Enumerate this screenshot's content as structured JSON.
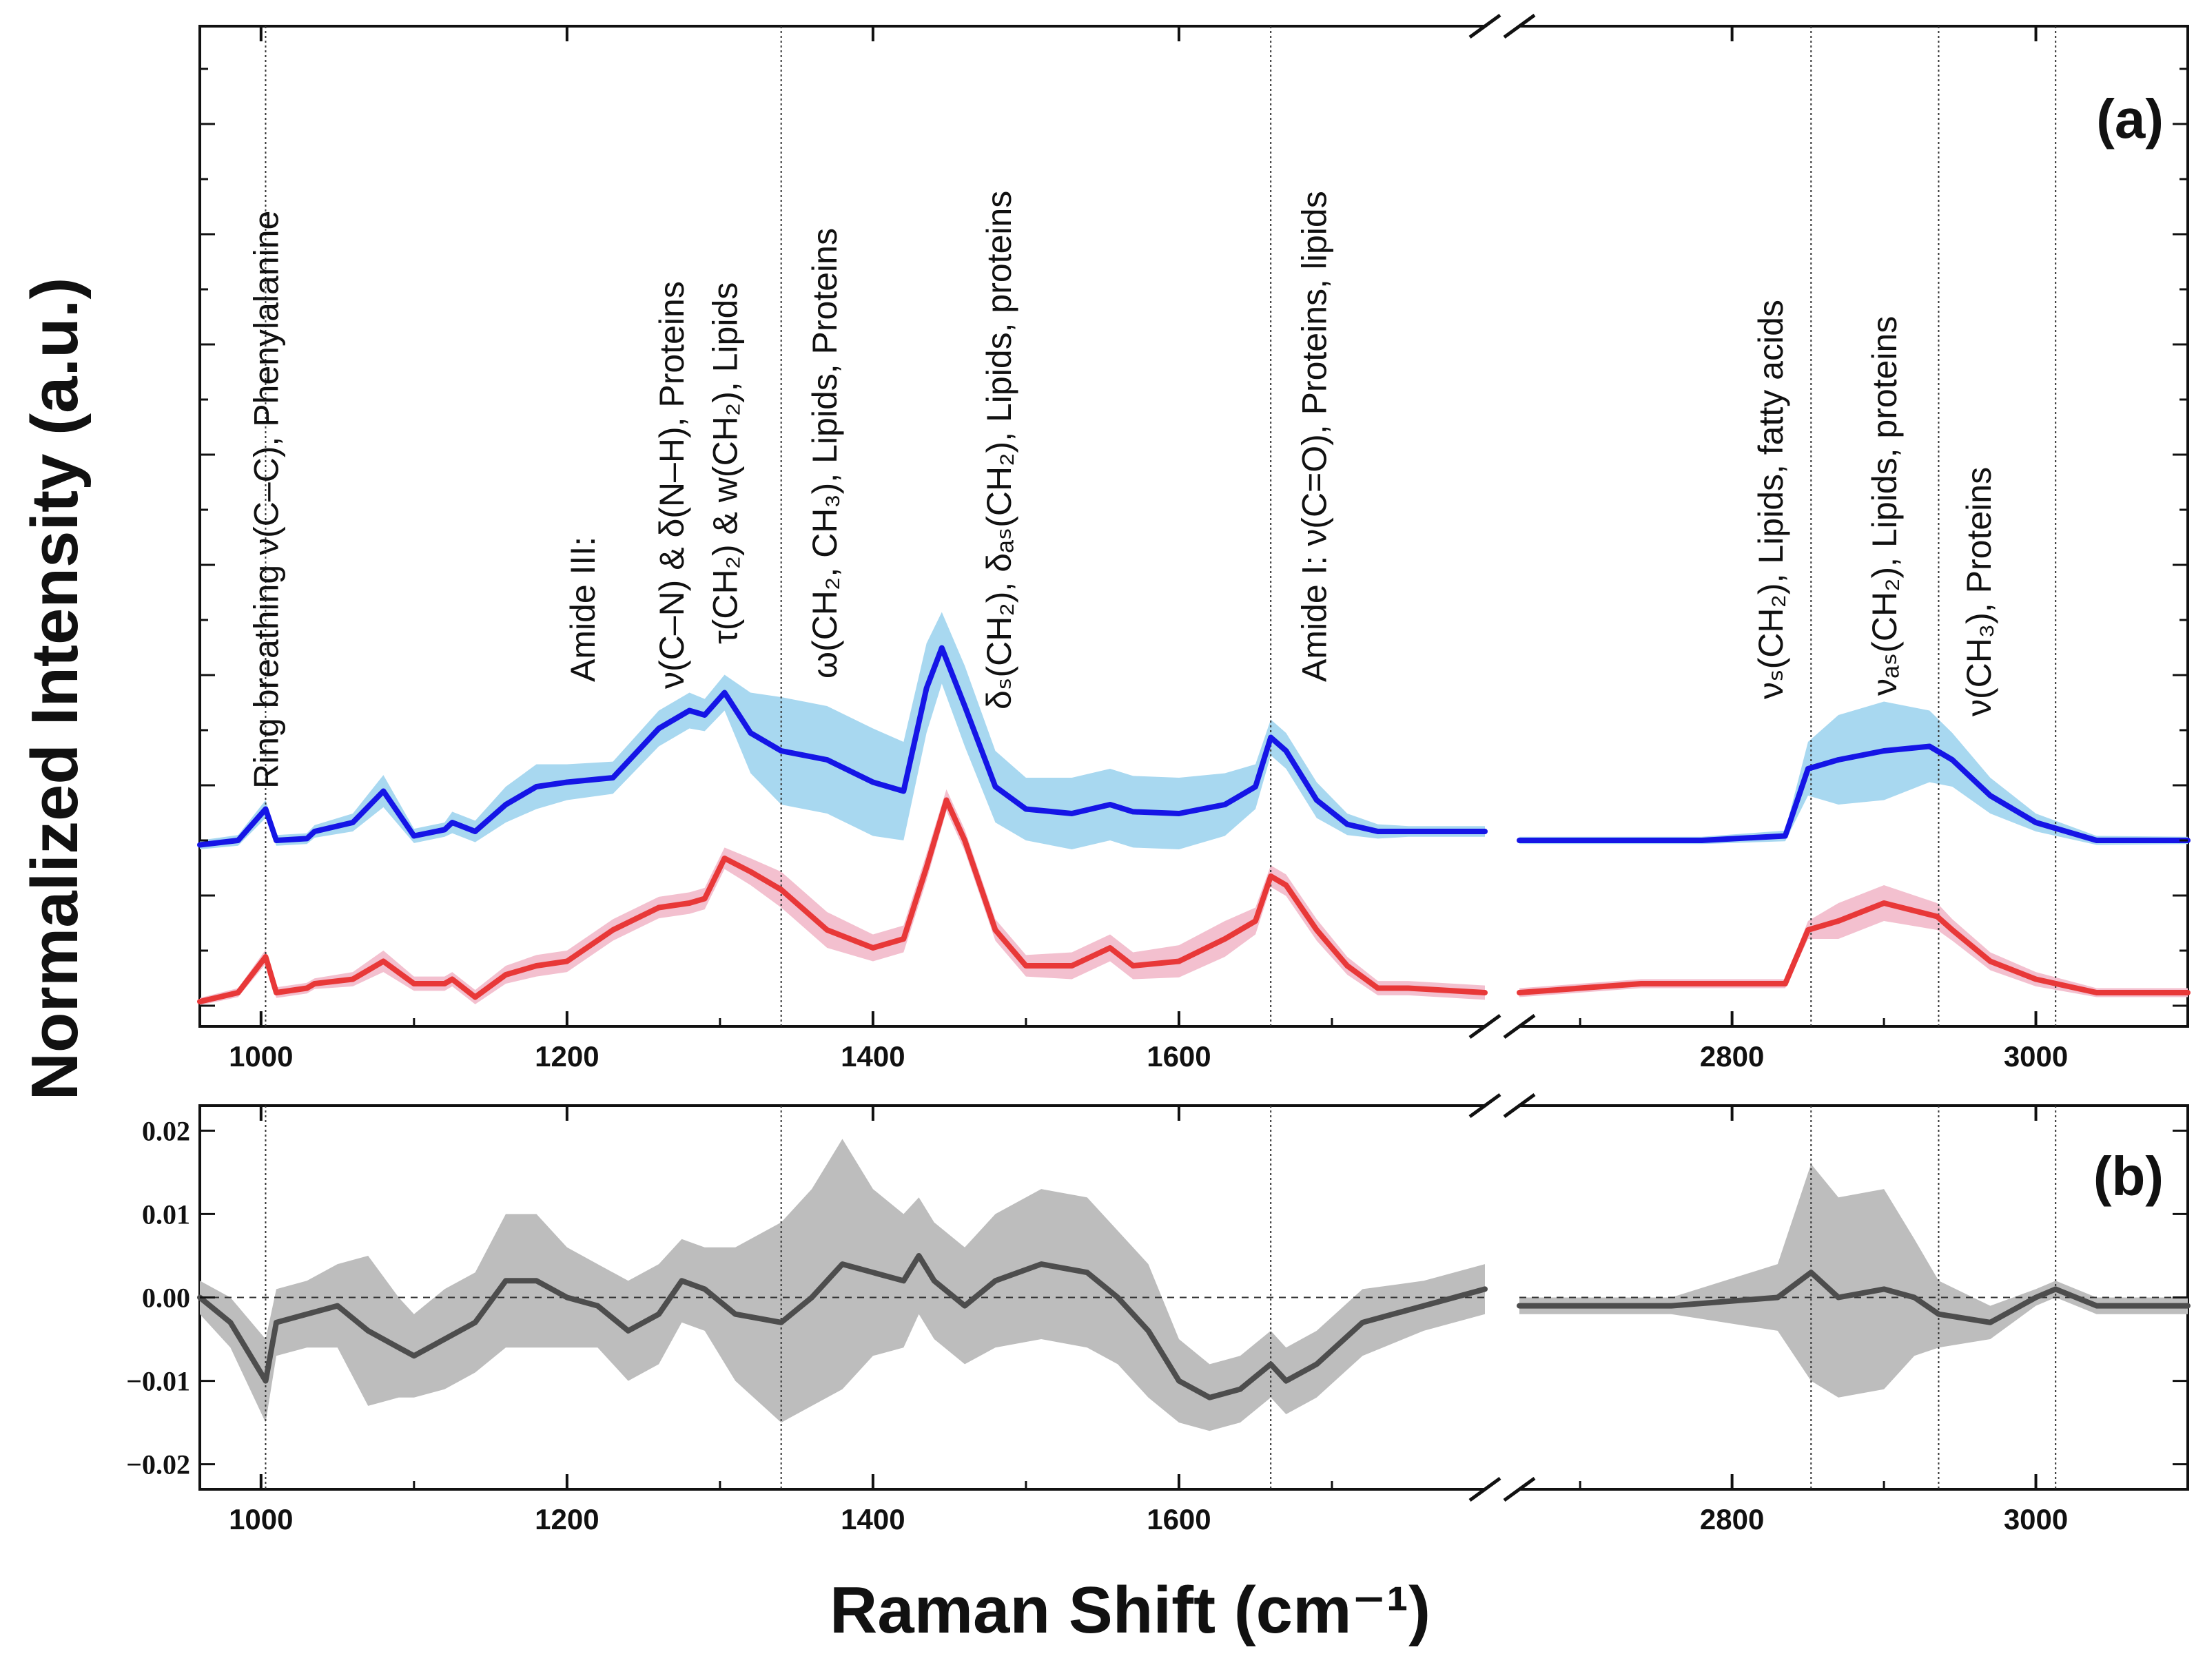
{
  "chart_data": [
    {
      "panel": "a",
      "type": "line",
      "panel_label": "(a)",
      "ylabel": "Normalized Intensity (a.u.)",
      "xlabel": "",
      "x_segments": [
        [
          960,
          1800
        ],
        [
          2660,
          3100
        ]
      ],
      "x_ticks": [
        1000,
        1200,
        1400,
        1600,
        2800,
        3000
      ],
      "tick_labels": [
        "1000",
        "1200",
        "1400",
        "1600",
        "2800",
        "3000"
      ],
      "ylim": [
        0,
        1
      ],
      "series": [
        {
          "name": "upper spectrum",
          "color": "#1515e6",
          "band_color": "#a8d8f0",
          "x": [
            960,
            985,
            1003,
            1010,
            1030,
            1035,
            1060,
            1080,
            1100,
            1120,
            1125,
            1140,
            1160,
            1180,
            1200,
            1230,
            1260,
            1280,
            1290,
            1303,
            1320,
            1340,
            1370,
            1400,
            1420,
            1435,
            1445,
            1460,
            1480,
            1500,
            1530,
            1555,
            1570,
            1600,
            1630,
            1650,
            1660,
            1670,
            1690,
            1710,
            1730,
            1750,
            1800,
            2660,
            2780,
            2835,
            2850,
            2870,
            2900,
            2930,
            2945,
            2970,
            3000,
            3040,
            3100
          ],
          "y": [
            0.195,
            0.2,
            0.235,
            0.2,
            0.202,
            0.21,
            0.22,
            0.255,
            0.205,
            0.212,
            0.22,
            0.21,
            0.24,
            0.26,
            0.265,
            0.27,
            0.325,
            0.345,
            0.34,
            0.365,
            0.32,
            0.3,
            0.29,
            0.265,
            0.255,
            0.37,
            0.415,
            0.35,
            0.26,
            0.235,
            0.23,
            0.24,
            0.232,
            0.23,
            0.24,
            0.26,
            0.315,
            0.3,
            0.245,
            0.218,
            0.21,
            0.21,
            0.21,
            0.2,
            0.2,
            0.205,
            0.28,
            0.29,
            0.3,
            0.305,
            0.29,
            0.25,
            0.22,
            0.2,
            0.2
          ],
          "band": [
            0.005,
            0.006,
            0.01,
            0.006,
            0.006,
            0.007,
            0.01,
            0.018,
            0.008,
            0.008,
            0.012,
            0.012,
            0.02,
            0.025,
            0.02,
            0.018,
            0.02,
            0.02,
            0.018,
            0.02,
            0.045,
            0.06,
            0.06,
            0.06,
            0.055,
            0.05,
            0.04,
            0.045,
            0.04,
            0.035,
            0.04,
            0.04,
            0.04,
            0.04,
            0.035,
            0.025,
            0.02,
            0.02,
            0.02,
            0.012,
            0.008,
            0.006,
            0.006,
            0.004,
            0.004,
            0.006,
            0.03,
            0.05,
            0.055,
            0.04,
            0.03,
            0.02,
            0.01,
            0.005,
            0.004
          ]
        },
        {
          "name": "lower spectrum",
          "color": "#e83838",
          "band_color": "#f3c0cf",
          "x": [
            960,
            985,
            1003,
            1010,
            1030,
            1035,
            1060,
            1080,
            1100,
            1120,
            1125,
            1140,
            1160,
            1180,
            1200,
            1230,
            1260,
            1280,
            1290,
            1303,
            1320,
            1340,
            1370,
            1400,
            1420,
            1435,
            1448,
            1460,
            1480,
            1500,
            1530,
            1555,
            1570,
            1600,
            1630,
            1650,
            1660,
            1670,
            1690,
            1710,
            1730,
            1750,
            1800,
            2660,
            2740,
            2835,
            2850,
            2870,
            2900,
            2935,
            2945,
            2970,
            3000,
            3040,
            3100
          ],
          "y": [
            0.02,
            0.03,
            0.07,
            0.03,
            0.035,
            0.04,
            0.045,
            0.065,
            0.04,
            0.04,
            0.045,
            0.025,
            0.05,
            0.06,
            0.065,
            0.1,
            0.125,
            0.13,
            0.135,
            0.18,
            0.165,
            0.145,
            0.1,
            0.08,
            0.09,
            0.17,
            0.245,
            0.2,
            0.1,
            0.06,
            0.06,
            0.08,
            0.06,
            0.065,
            0.09,
            0.11,
            0.16,
            0.15,
            0.1,
            0.06,
            0.035,
            0.035,
            0.03,
            0.03,
            0.04,
            0.04,
            0.1,
            0.11,
            0.13,
            0.115,
            0.1,
            0.065,
            0.045,
            0.03,
            0.03
          ],
          "band": [
            0.004,
            0.005,
            0.008,
            0.006,
            0.006,
            0.006,
            0.008,
            0.012,
            0.008,
            0.008,
            0.008,
            0.008,
            0.01,
            0.012,
            0.012,
            0.012,
            0.012,
            0.012,
            0.012,
            0.012,
            0.015,
            0.02,
            0.02,
            0.015,
            0.015,
            0.015,
            0.012,
            0.012,
            0.012,
            0.012,
            0.015,
            0.015,
            0.015,
            0.018,
            0.02,
            0.015,
            0.012,
            0.012,
            0.012,
            0.01,
            0.008,
            0.008,
            0.008,
            0.005,
            0.005,
            0.005,
            0.01,
            0.02,
            0.02,
            0.015,
            0.012,
            0.01,
            0.008,
            0.005,
            0.005
          ]
        }
      ],
      "vlines": [
        1003,
        1340,
        1660,
        2852,
        2936,
        3013
      ],
      "annotations": [
        {
          "x": 1003,
          "text": "Ring breathing ν(C–C), Phenylalanine"
        },
        {
          "x": 1210,
          "text": "Amide III:"
        },
        {
          "x": 1268,
          "text": "ν(C–N) & δ(N–H), Proteins"
        },
        {
          "x": 1303,
          "text": "τ(CH₂) & w(CH₂), Lipids"
        },
        {
          "x": 1368,
          "text": "ω(CH₂, CH₃), Lipids, Proteins"
        },
        {
          "x": 1482,
          "text": "δₛ(CH₂), δₐₛ(CH₂), Lipids, proteins"
        },
        {
          "x": 1688,
          "text": "Amide I: ν(C=O), Proteins, lipids"
        },
        {
          "x": 2825,
          "text": "νₛ(CH₂), Lipids, fatty acids"
        },
        {
          "x": 2900,
          "text": "νₐₛ(CH₂), Lipids, proteins"
        },
        {
          "x": 2962,
          "text": "ν(CH₃), Proteins"
        }
      ]
    },
    {
      "panel": "b",
      "type": "line",
      "panel_label": "(b)",
      "xlabel": "Raman Shift (cm⁻¹)",
      "ylabel": "",
      "x_segments": [
        [
          960,
          1800
        ],
        [
          2660,
          3100
        ]
      ],
      "x_ticks": [
        1000,
        1200,
        1400,
        1600,
        2800,
        3000
      ],
      "tick_labels": [
        "1000",
        "1200",
        "1400",
        "1600",
        "2800",
        "3000"
      ],
      "ylim": [
        -0.023,
        0.023
      ],
      "y_ticks": [
        0.02,
        0.01,
        0.0,
        -0.01,
        -0.02
      ],
      "y_tick_labels": [
        "0.02",
        "0.01",
        "0.00",
        "−0.01",
        "−0.02"
      ],
      "zero_line": 0.0,
      "vlines": [
        1003,
        1340,
        1660,
        2852,
        2936,
        3013
      ],
      "series": [
        {
          "name": "difference",
          "color": "#4d4d4d",
          "band_color": "#bdbdbd",
          "x": [
            960,
            980,
            1003,
            1010,
            1030,
            1050,
            1070,
            1090,
            1100,
            1120,
            1140,
            1160,
            1180,
            1200,
            1220,
            1240,
            1260,
            1275,
            1290,
            1310,
            1340,
            1360,
            1380,
            1400,
            1420,
            1430,
            1440,
            1460,
            1480,
            1510,
            1540,
            1560,
            1580,
            1600,
            1620,
            1640,
            1660,
            1670,
            1690,
            1720,
            1760,
            1800,
            2660,
            2760,
            2830,
            2852,
            2870,
            2900,
            2920,
            2936,
            2970,
            3000,
            3013,
            3040,
            3100
          ],
          "y": [
            0.0,
            -0.003,
            -0.01,
            -0.003,
            -0.002,
            -0.001,
            -0.004,
            -0.006,
            -0.007,
            -0.005,
            -0.003,
            0.002,
            0.002,
            0.0,
            -0.001,
            -0.004,
            -0.002,
            0.002,
            0.001,
            -0.002,
            -0.003,
            0.0,
            0.004,
            0.003,
            0.002,
            0.005,
            0.002,
            -0.001,
            0.002,
            0.004,
            0.003,
            0.0,
            -0.004,
            -0.01,
            -0.012,
            -0.011,
            -0.008,
            -0.01,
            -0.008,
            -0.003,
            -0.001,
            0.001,
            -0.001,
            -0.001,
            0.0,
            0.003,
            0.0,
            0.001,
            0.0,
            -0.002,
            -0.003,
            0.0,
            0.001,
            -0.001,
            -0.001
          ],
          "band": [
            0.002,
            0.003,
            0.005,
            0.004,
            0.004,
            0.005,
            0.009,
            0.006,
            0.005,
            0.006,
            0.006,
            0.008,
            0.008,
            0.006,
            0.005,
            0.006,
            0.006,
            0.005,
            0.005,
            0.008,
            0.012,
            0.013,
            0.015,
            0.01,
            0.008,
            0.007,
            0.007,
            0.007,
            0.008,
            0.009,
            0.009,
            0.008,
            0.008,
            0.005,
            0.004,
            0.004,
            0.004,
            0.004,
            0.004,
            0.004,
            0.003,
            0.003,
            0.001,
            0.001,
            0.004,
            0.013,
            0.012,
            0.012,
            0.007,
            0.004,
            0.002,
            0.001,
            0.001,
            0.001,
            0.001
          ]
        }
      ]
    }
  ]
}
